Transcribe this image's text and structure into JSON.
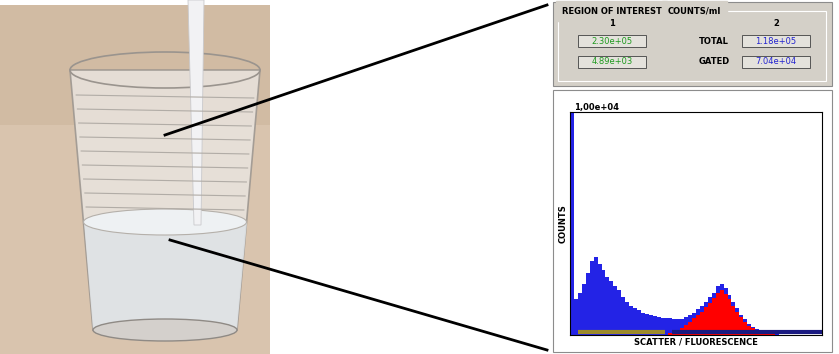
{
  "header": {
    "title": "REGION OF INTEREST",
    "unit": "COUNTS/ml",
    "columns": [
      "1",
      "2"
    ],
    "rows": [
      {
        "label": "TOTAL",
        "values": [
          "2.30e+05",
          "1.18e+05"
        ]
      },
      {
        "label": "GATED",
        "values": [
          "4.89e+03",
          "7.04e+04"
        ]
      }
    ]
  },
  "chart_data": {
    "type": "histogram",
    "x_label": "SCATTER / FLUORESCENCE",
    "y_label": "COUNTS",
    "bins": [
      0,
      2,
      4,
      6,
      8,
      10,
      12,
      14,
      16,
      18,
      20,
      22,
      24,
      26,
      28,
      30,
      32,
      34,
      36,
      38,
      40,
      42,
      44,
      46,
      48,
      50,
      52,
      54,
      56,
      58,
      60,
      62,
      64,
      66,
      68,
      70,
      72,
      74,
      76,
      78,
      80,
      82,
      84,
      86,
      88,
      90,
      92,
      94,
      96,
      98,
      100,
      102,
      104,
      106,
      108,
      110,
      112,
      114,
      116,
      118,
      120,
      122,
      124,
      126,
      128
    ],
    "series": [
      {
        "color": "#2323e6",
        "values": [
          10000,
          1600,
          1900,
          2300,
          2800,
          3300,
          3500,
          3200,
          2900,
          2600,
          2400,
          2200,
          2000,
          1700,
          1500,
          1300,
          1200,
          1100,
          1000,
          950,
          900,
          850,
          800,
          780,
          760,
          740,
          720,
          700,
          720,
          800,
          900,
          1000,
          1150,
          1300,
          1500,
          1700,
          1900,
          2200,
          2300,
          2100,
          1800,
          1500,
          1200,
          900,
          700,
          500,
          350,
          250,
          180,
          120,
          80,
          50,
          30,
          20,
          10,
          0,
          0,
          0,
          0,
          0,
          0,
          0,
          0,
          0
        ]
      },
      {
        "color": "#ff0000",
        "values": [
          0,
          0,
          0,
          0,
          0,
          0,
          0,
          0,
          0,
          0,
          0,
          0,
          0,
          0,
          0,
          0,
          0,
          0,
          0,
          0,
          0,
          0,
          0,
          0,
          0,
          100,
          150,
          200,
          300,
          450,
          600,
          750,
          900,
          1050,
          1250,
          1450,
          1650,
          1900,
          2000,
          1850,
          1600,
          1300,
          1050,
          800,
          600,
          420,
          300,
          200,
          140,
          90,
          60,
          40,
          20,
          10,
          0,
          0,
          0,
          0,
          0,
          0,
          0,
          0,
          0,
          0
        ]
      }
    ],
    "regions": [
      {
        "name": "1",
        "color": "#9c8a2c",
        "range": [
          4,
          48
        ]
      },
      {
        "name": "2",
        "color": "#1a1a80",
        "range": [
          52,
          128
        ]
      }
    ],
    "xlim": [
      0,
      128
    ],
    "xticks": [],
    "ylim": [
      0,
      10000
    ],
    "yticks": [
      {
        "value": 10000,
        "label": "1,00e+04"
      }
    ],
    "tick_labels": "y"
  }
}
